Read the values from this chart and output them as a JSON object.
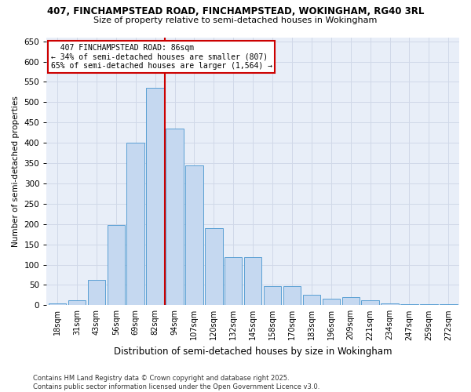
{
  "title_line1": "407, FINCHAMPSTEAD ROAD, FINCHAMPSTEAD, WOKINGHAM, RG40 3RL",
  "title_line2": "Size of property relative to semi-detached houses in Wokingham",
  "xlabel": "Distribution of semi-detached houses by size in Wokingham",
  "ylabel": "Number of semi-detached properties",
  "categories": [
    "18sqm",
    "31sqm",
    "43sqm",
    "56sqm",
    "69sqm",
    "82sqm",
    "94sqm",
    "107sqm",
    "120sqm",
    "132sqm",
    "145sqm",
    "158sqm",
    "170sqm",
    "183sqm",
    "196sqm",
    "209sqm",
    "221sqm",
    "234sqm",
    "247sqm",
    "259sqm",
    "272sqm"
  ],
  "values": [
    5,
    12,
    62,
    197,
    400,
    535,
    435,
    345,
    190,
    118,
    118,
    46,
    46,
    25,
    17,
    20,
    12,
    4,
    2,
    2,
    2
  ],
  "bar_color": "#c5d8f0",
  "bar_edge_color": "#5a9fd4",
  "vline_color": "#cc0000",
  "box_edge_color": "#cc0000",
  "bg_color": "#ffffff",
  "plot_bg_color": "#e8eef8",
  "grid_color": "#d0d8e8",
  "ylim": [
    0,
    660
  ],
  "yticks": [
    0,
    50,
    100,
    150,
    200,
    250,
    300,
    350,
    400,
    450,
    500,
    550,
    600,
    650
  ],
  "property_label": "407 FINCHAMPSTEAD ROAD: 86sqm",
  "pct_smaller": 34,
  "pct_smaller_n": 807,
  "pct_larger": 65,
  "pct_larger_n": 1564,
  "vline_bar_index": 5,
  "footer_line1": "Contains HM Land Registry data © Crown copyright and database right 2025.",
  "footer_line2": "Contains public sector information licensed under the Open Government Licence v3.0."
}
